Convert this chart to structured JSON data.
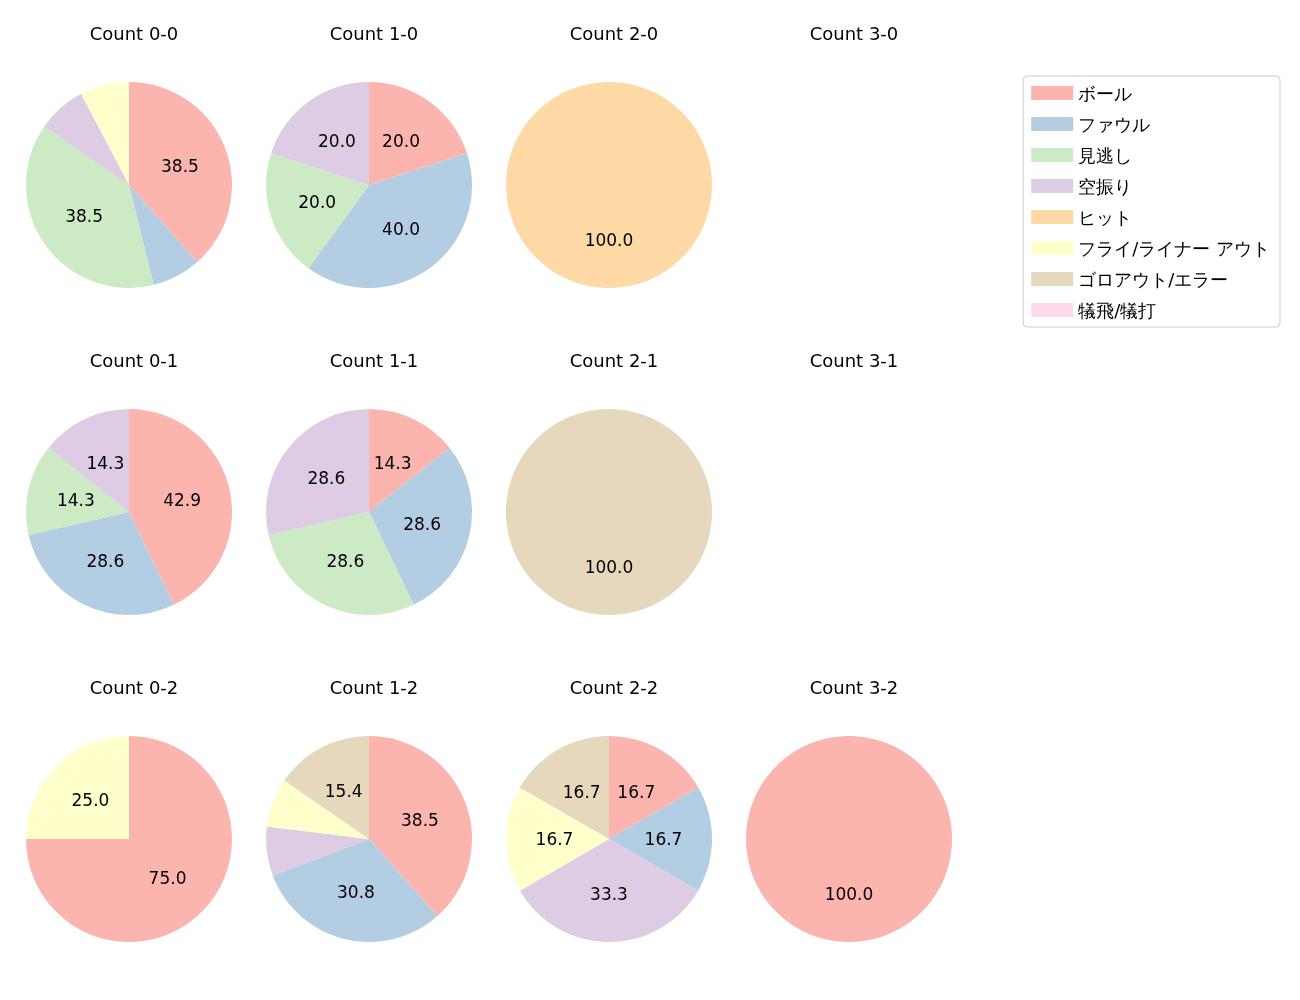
{
  "chart_data": [
    {
      "type": "pie",
      "title": "Count 0-0",
      "categories": [
        "ボール",
        "ファウル",
        "見逃し",
        "空振り",
        "ヒット",
        "フライ/ライナー アウト",
        "ゴロアウト/エラー",
        "犠飛/犠打"
      ],
      "values": [
        38.5,
        7.7,
        38.5,
        7.7,
        0,
        7.7,
        0,
        0
      ],
      "colors": [
        "#fbb4ae",
        "#b3cde3",
        "#ccebc5",
        "#decbe4",
        "#fed9a6",
        "#ffffcc",
        "#e5d8bd",
        "#fddaec"
      ],
      "value_labels": [
        "38.5",
        null,
        "38.5",
        null,
        null,
        null,
        null,
        null
      ],
      "legend": "right"
    },
    {
      "type": "pie",
      "title": "Count 1-0",
      "categories": [
        null,
        null,
        null,
        null
      ],
      "values": [
        20,
        40,
        20,
        20
      ],
      "colors": [
        "#fbb4ae",
        "#b3cde3",
        "#ccebc5",
        "#decbe4"
      ],
      "value_labels": [
        "20.0",
        "40.0",
        "20.0",
        "20.0"
      ]
    },
    {
      "type": "pie",
      "title": "Count 2-0",
      "categories": [
        null
      ],
      "values": [
        100
      ],
      "colors": [
        "#fed9a6"
      ],
      "value_labels": [
        "100.0"
      ]
    },
    {
      "type": "pie",
      "title": "Count 3-0"
    },
    {
      "type": "pie",
      "title": "Count 0-1",
      "categories": [
        null,
        null,
        null,
        null
      ],
      "values": [
        42.9,
        28.6,
        14.3,
        14.3
      ],
      "colors": [
        "#fbb4ae",
        "#b3cde3",
        "#ccebc5",
        "#decbe4"
      ],
      "value_labels": [
        "42.9",
        "28.6",
        "14.3",
        "14.3"
      ]
    },
    {
      "type": "pie",
      "title": "Count 1-1",
      "categories": [
        null,
        null,
        null,
        null
      ],
      "values": [
        14.3,
        28.6,
        28.6,
        28.6
      ],
      "colors": [
        "#fbb4ae",
        "#b3cde3",
        "#ccebc5",
        "#decbe4"
      ],
      "value_labels": [
        "14.3",
        "28.6",
        "28.6",
        "28.6"
      ]
    },
    {
      "type": "pie",
      "title": "Count 2-1",
      "categories": [
        null
      ],
      "values": [
        100
      ],
      "colors": [
        "#e5d8bd"
      ],
      "value_labels": [
        "100.0"
      ]
    },
    {
      "type": "pie",
      "title": "Count 3-1"
    },
    {
      "type": "pie",
      "title": "Count 0-2",
      "categories": [
        null,
        null
      ],
      "values": [
        75,
        25
      ],
      "colors": [
        "#fbb4ae",
        "#ffffcc"
      ],
      "value_labels": [
        "75.0",
        "25.0"
      ]
    },
    {
      "type": "pie",
      "title": "Count 1-2",
      "categories": [
        null,
        null,
        null,
        null,
        null
      ],
      "values": [
        38.5,
        30.8,
        7.7,
        7.7,
        15.4
      ],
      "colors": [
        "#fbb4ae",
        "#b3cde3",
        "#decbe4",
        "#ffffcc",
        "#e5d8bd"
      ],
      "value_labels": [
        "38.5",
        "30.8",
        null,
        null,
        "15.4"
      ]
    },
    {
      "type": "pie",
      "title": "Count 2-2",
      "categories": [
        null,
        null,
        null,
        null,
        null
      ],
      "values": [
        16.7,
        16.7,
        33.3,
        16.7,
        16.7
      ],
      "colors": [
        "#fbb4ae",
        "#b3cde3",
        "#decbe4",
        "#ffffcc",
        "#e5d8bd"
      ],
      "value_labels": [
        "16.7",
        "16.7",
        "33.3",
        "16.7",
        "16.7"
      ]
    },
    {
      "type": "pie",
      "title": "Count 3-2",
      "categories": [
        null
      ],
      "values": [
        100
      ],
      "colors": [
        "#fbb4ae"
      ],
      "value_labels": [
        "100.0"
      ]
    }
  ]
}
